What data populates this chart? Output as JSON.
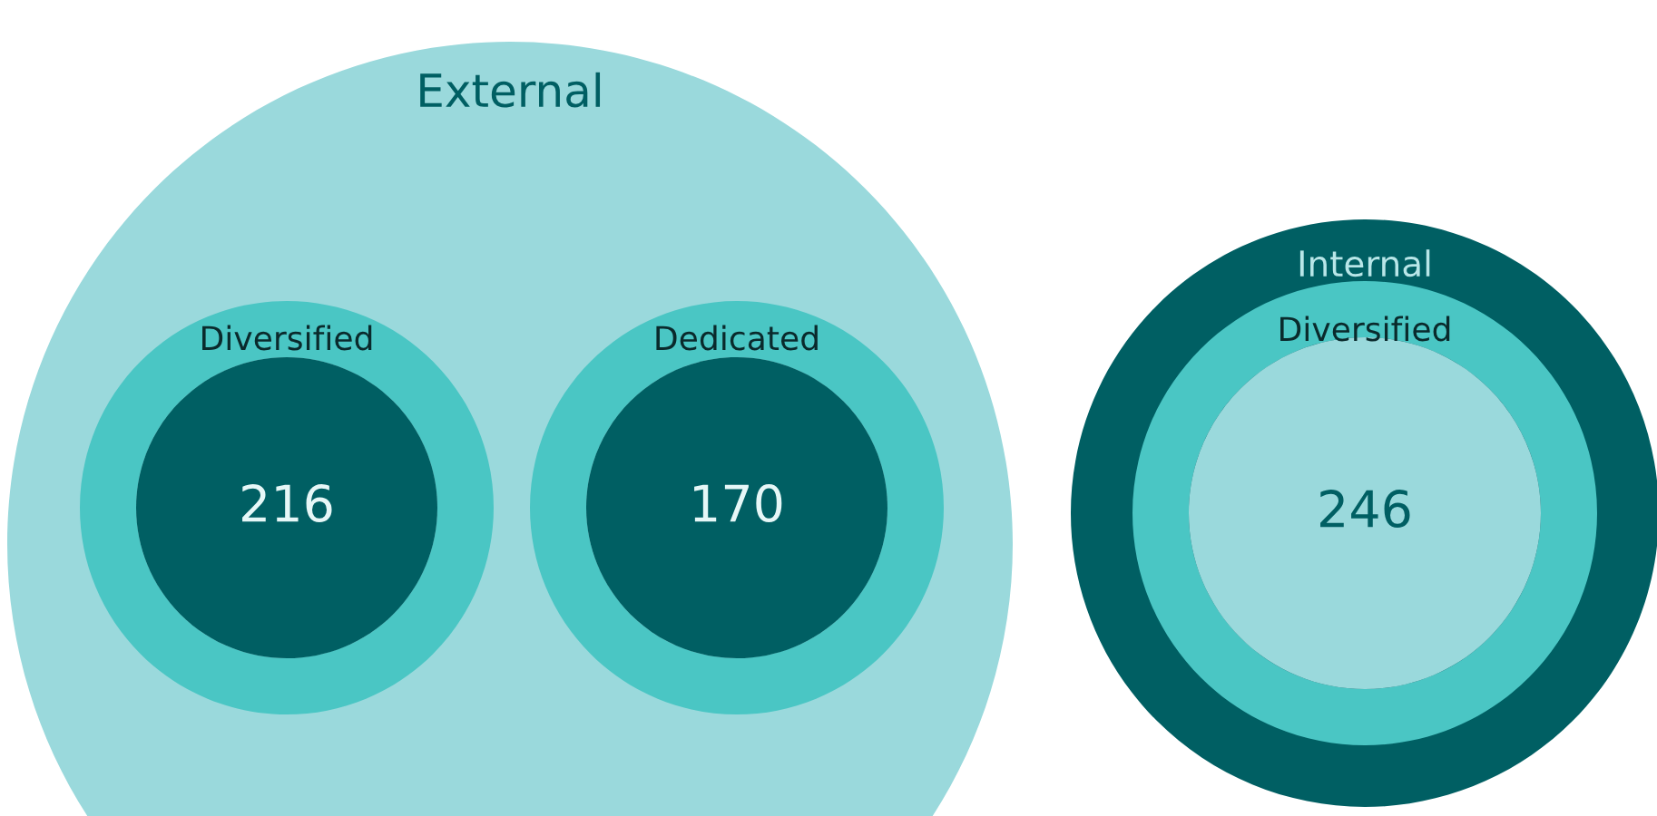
{
  "chart_data": {
    "type": "other",
    "categories": [
      "Diversified",
      "Dedicated",
      "Diversified"
    ],
    "values": [
      216,
      170,
      246
    ],
    "colors": [
      "#005f63",
      "#005f63",
      "#9ad9dc"
    ],
    "data_labels": true,
    "annotations": [
      "External",
      "Internal"
    ]
  }
}
